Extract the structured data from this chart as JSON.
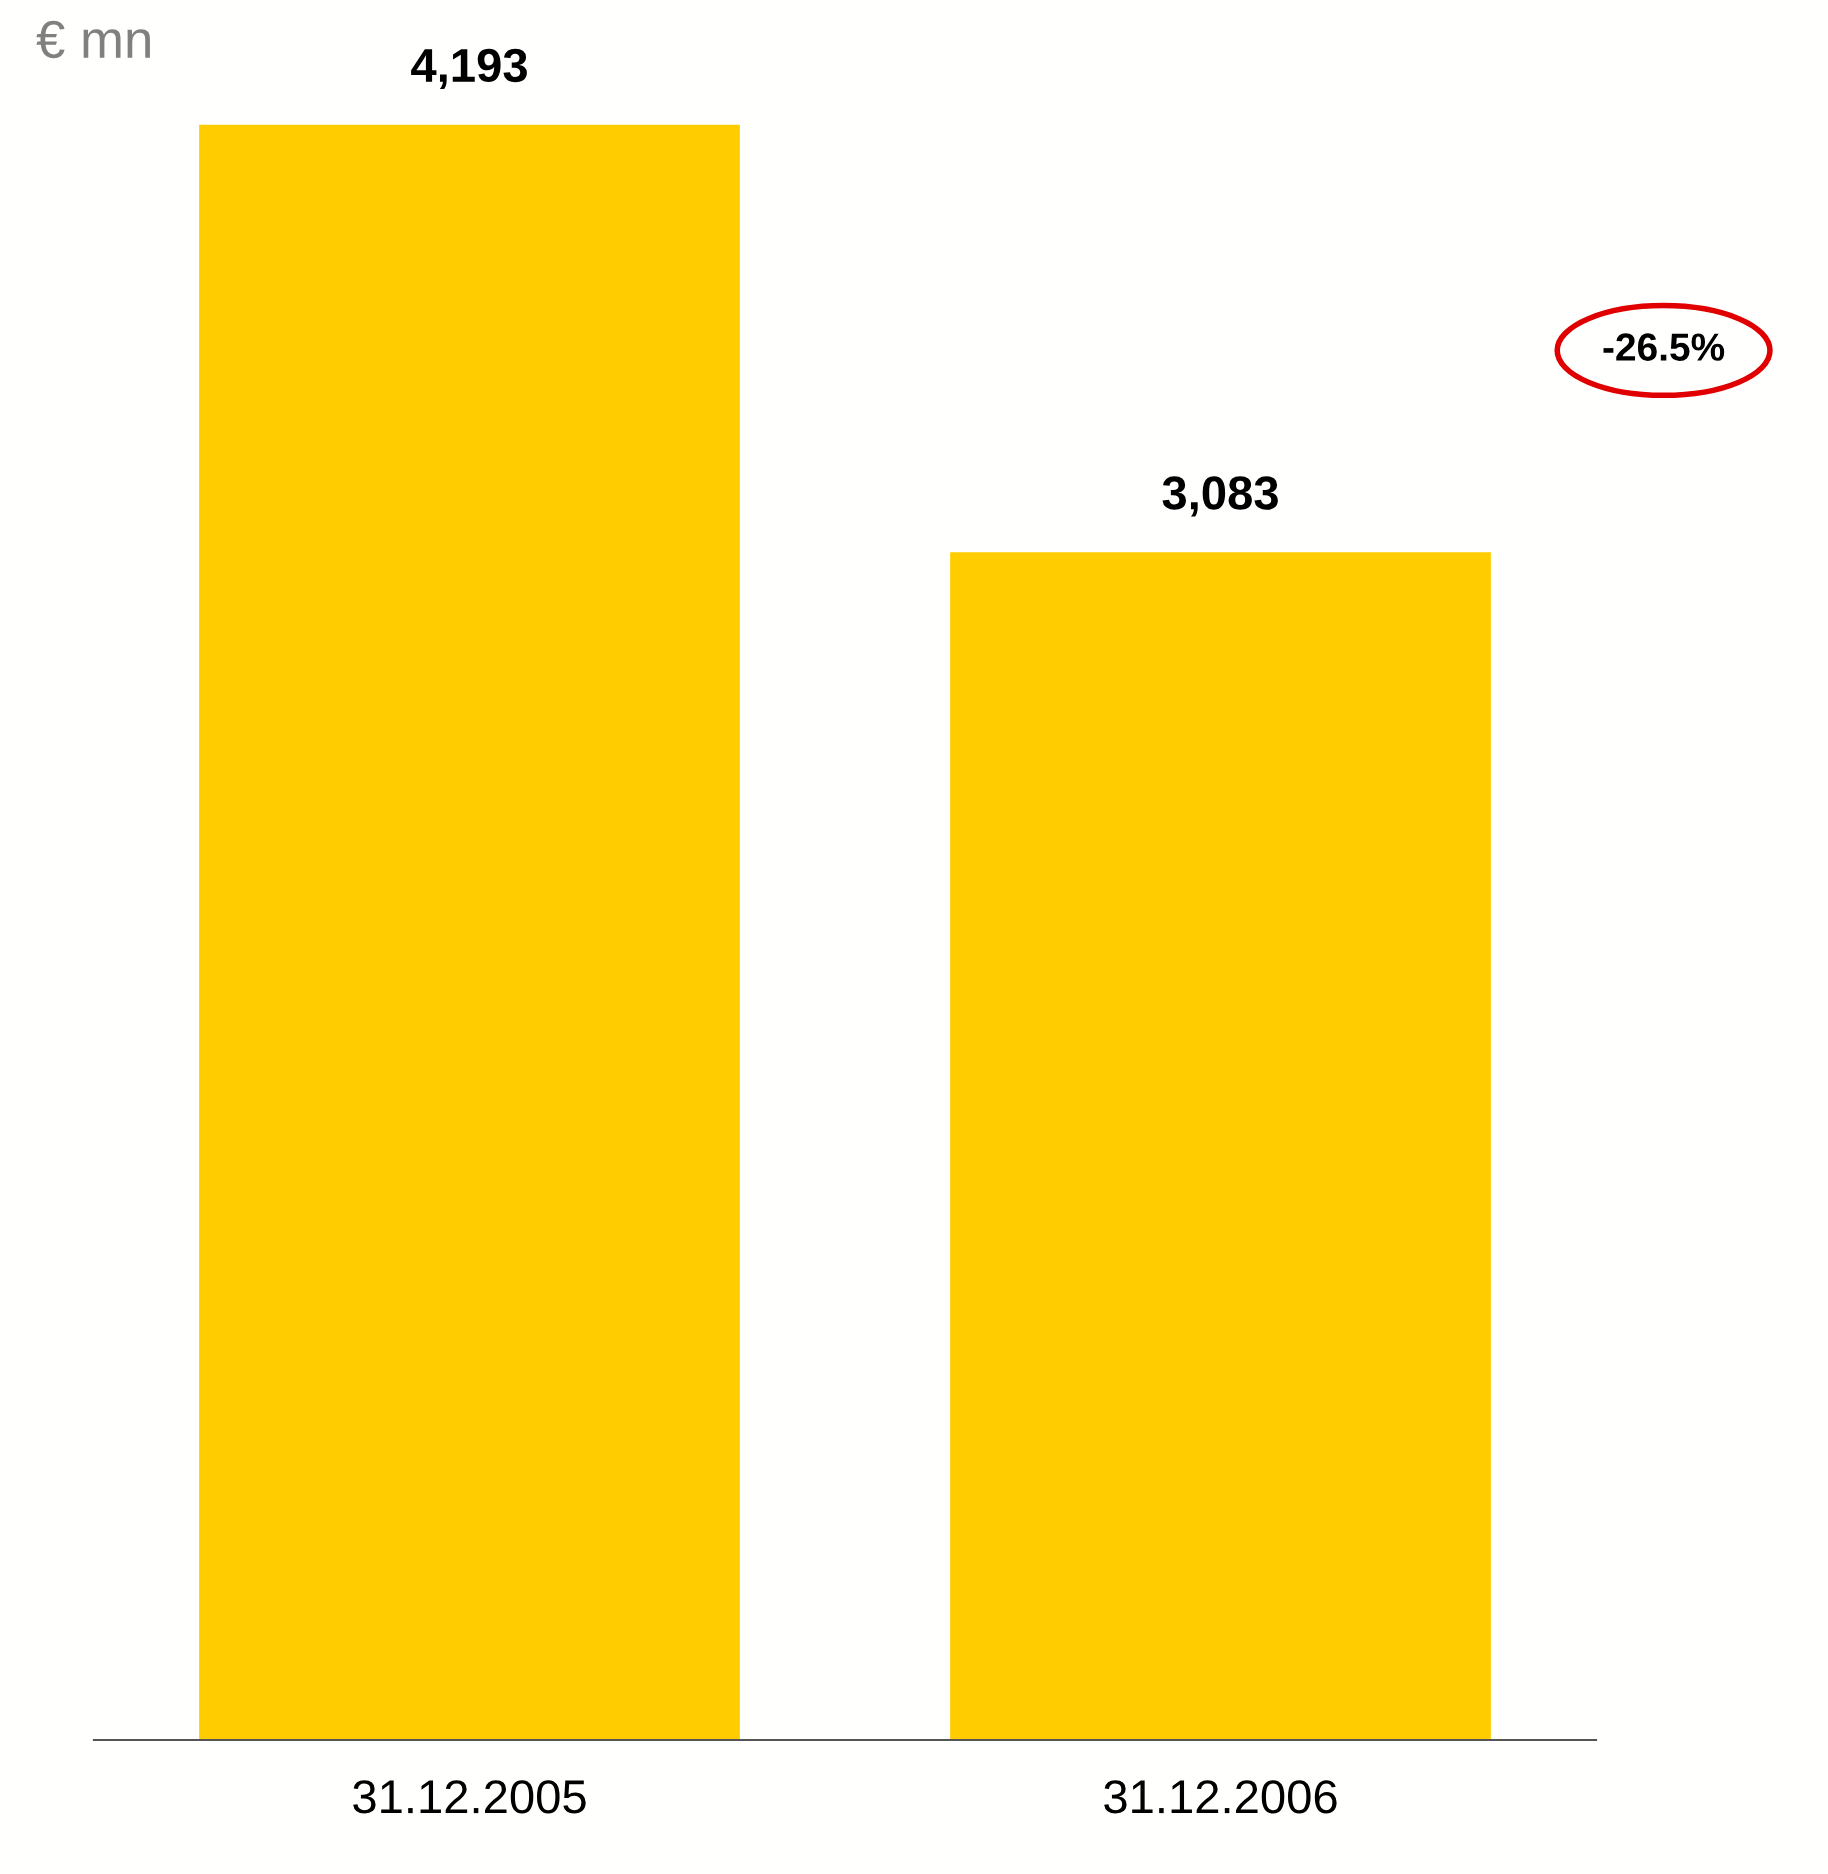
{
  "chart_data": {
    "type": "bar",
    "ylabel": "€ mn",
    "categories": [
      "31.12.2005",
      "31.12.2006"
    ],
    "values": [
      4193,
      3083
    ],
    "value_labels": [
      "4,193",
      "3,083"
    ],
    "color": "#ffcc00",
    "grid": false,
    "legend": false,
    "annotations": [
      "-26.5%"
    ]
  }
}
